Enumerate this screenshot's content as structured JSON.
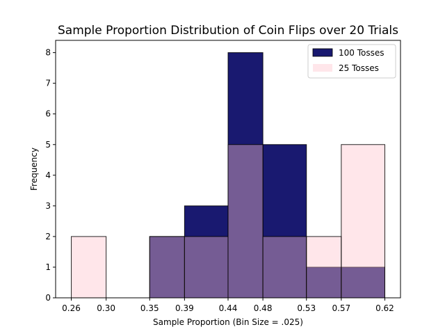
{
  "chart_data": {
    "type": "bar",
    "title": "Sample Proportion Distribution of Coin Flips over 20 Trials",
    "xlabel": "Sample Proportion (Bin Size = .025)",
    "ylabel": "Frequency",
    "bin_edges": [
      0.26,
      0.3,
      0.35,
      0.39,
      0.44,
      0.48,
      0.53,
      0.57,
      0.62
    ],
    "x_tick_labels": [
      "0.26",
      "0.30",
      "0.35",
      "0.39",
      "0.44",
      "0.48",
      "0.53",
      "0.57",
      "0.62"
    ],
    "y_ticks": [
      0,
      1,
      2,
      3,
      4,
      5,
      6,
      7,
      8
    ],
    "ylim": [
      0,
      8.4
    ],
    "series": [
      {
        "name": "100 Tosses",
        "color": "#191970",
        "opacity": 1.0,
        "values": [
          0,
          0,
          2,
          3,
          8,
          5,
          1,
          1
        ]
      },
      {
        "name": "25 Tosses",
        "color": "#ffc0cb",
        "opacity": 0.4,
        "values": [
          2,
          0,
          2,
          2,
          5,
          2,
          2,
          5
        ]
      }
    ],
    "legend_position": "top-right",
    "grid": false
  }
}
